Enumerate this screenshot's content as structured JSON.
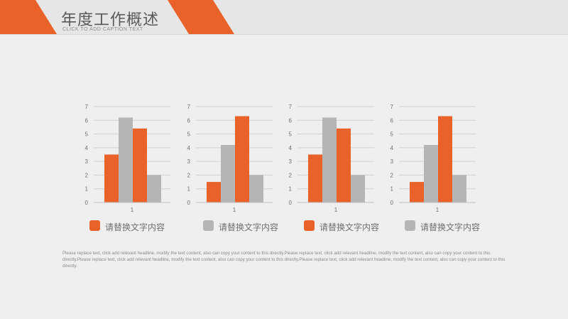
{
  "slide": {
    "title": "年度工作概述",
    "subtitle": "CLICK TO ADD CAPTION TEXT",
    "body_text": "Please replace text, click add relevant headline, modify the text content, also can copy your content to this directly.Please replace text, click add relevant headline, modify the text content, also can copy your content to this directly.Please replace text, click add relevant headline, modify the text content, also can copy your content to this directly.Please replace text, click add relevant headline, modify the text content, also can copy your content to this directly."
  },
  "colors": {
    "accent": "#e8622a",
    "gray": "#b5b5b5",
    "grid": "#d0d0d0",
    "axis_text": "#6f6f6f"
  },
  "chart_data": [
    {
      "type": "bar",
      "categories": [
        "1"
      ],
      "series": [
        {
          "values": [
            3.5
          ]
        },
        {
          "values": [
            6.2
          ]
        },
        {
          "values": [
            5.4
          ]
        },
        {
          "values": [
            2.0
          ]
        }
      ],
      "ylim": [
        0,
        7
      ],
      "yticks": [
        "0",
        "1",
        "2",
        "3",
        "4",
        "5",
        "6",
        "7"
      ],
      "legend": {
        "label": "请替换文字内容",
        "color": "#e8622a"
      }
    },
    {
      "type": "bar",
      "categories": [
        "1"
      ],
      "series": [
        {
          "values": [
            1.5
          ]
        },
        {
          "values": [
            4.2
          ]
        },
        {
          "values": [
            6.3
          ]
        },
        {
          "values": [
            2.0
          ]
        }
      ],
      "ylim": [
        0,
        7
      ],
      "yticks": [
        "0",
        "1",
        "2",
        "3",
        "4",
        "5",
        "6",
        "7"
      ],
      "legend": {
        "label": "请替换文字内容",
        "color": "#b5b5b5"
      }
    },
    {
      "type": "bar",
      "categories": [
        "1"
      ],
      "series": [
        {
          "values": [
            3.5
          ]
        },
        {
          "values": [
            6.2
          ]
        },
        {
          "values": [
            5.4
          ]
        },
        {
          "values": [
            2.0
          ]
        }
      ],
      "ylim": [
        0,
        7
      ],
      "yticks": [
        "0",
        "1",
        "2",
        "3",
        "4",
        "5",
        "6",
        "7"
      ],
      "legend": {
        "label": "请替换文字内容",
        "color": "#e8622a"
      }
    },
    {
      "type": "bar",
      "categories": [
        "1"
      ],
      "series": [
        {
          "values": [
            1.5
          ]
        },
        {
          "values": [
            4.2
          ]
        },
        {
          "values": [
            6.3
          ]
        },
        {
          "values": [
            2.0
          ]
        }
      ],
      "ylim": [
        0,
        7
      ],
      "yticks": [
        "0",
        "1",
        "2",
        "3",
        "4",
        "5",
        "6",
        "7"
      ],
      "legend": {
        "label": "请替换文字内容",
        "color": "#b5b5b5"
      }
    }
  ]
}
